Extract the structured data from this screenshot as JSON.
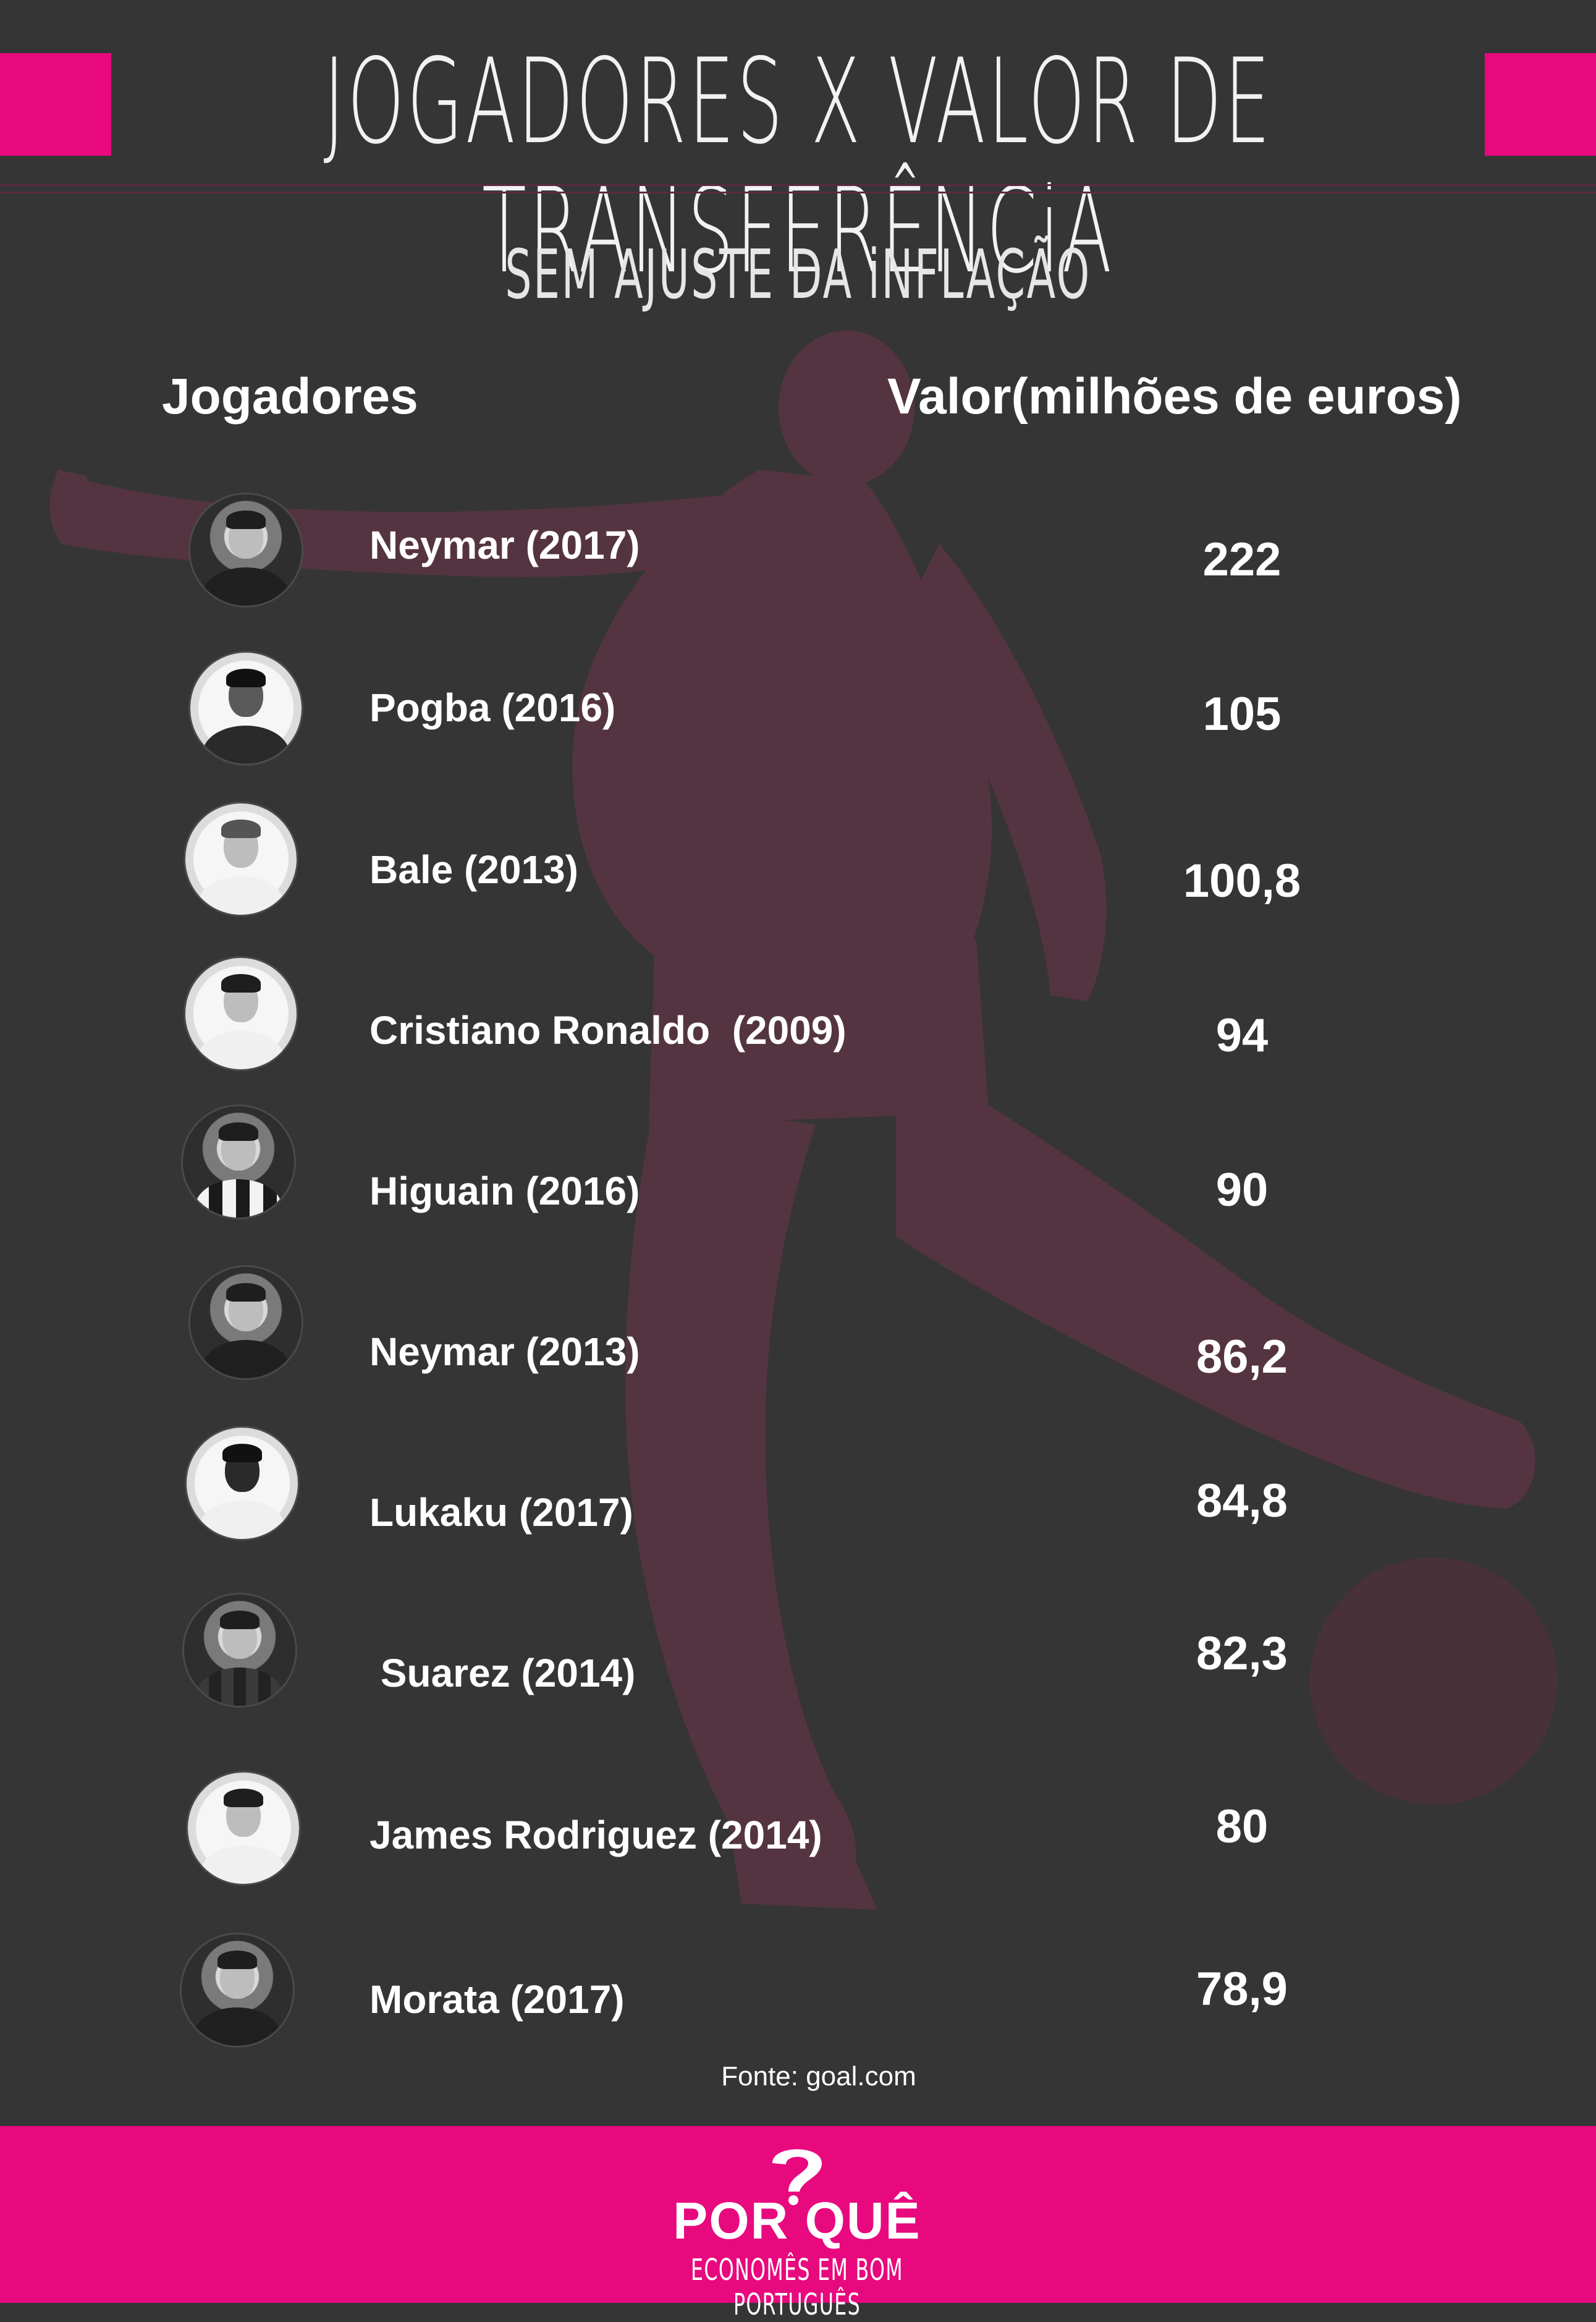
{
  "header": {
    "title": "JOGADORES X VALOR DE TRANSFERÊNCiA",
    "subtitle": "SEM AJUSTE DA iNFLAÇÃO"
  },
  "columns": {
    "players": "Jogadores",
    "value": "Valor(milhões de euros)"
  },
  "players": [
    {
      "name": "Neymar (2017)",
      "value": "222"
    },
    {
      "name": "Pogba (2016)",
      "value": "105"
    },
    {
      "name": "Bale (2013)",
      "value": "100,8"
    },
    {
      "name": "Cristiano Ronaldo  (2009)",
      "value": "94"
    },
    {
      "name": "Higuain (2016)",
      "value": "90"
    },
    {
      "name": "Neymar (2013)",
      "value": "86,2"
    },
    {
      "name": "Lukaku (2017)",
      "value": "84,8"
    },
    {
      "name": " Suarez (2014)",
      "value": "82,3"
    },
    {
      "name": "James Rodriguez (2014)",
      "value": "80"
    },
    {
      "name": "Morata (2017)",
      "value": "78,9"
    }
  ],
  "source": "Fonte: goal.com",
  "footer": {
    "logo": "POR QUÊ",
    "tagline": "ECONOMÊS EM BOM PORTUGUÊS"
  },
  "colors": {
    "background": "#363536",
    "accent": "#e8097e",
    "silhouette": "#5b3443"
  }
}
